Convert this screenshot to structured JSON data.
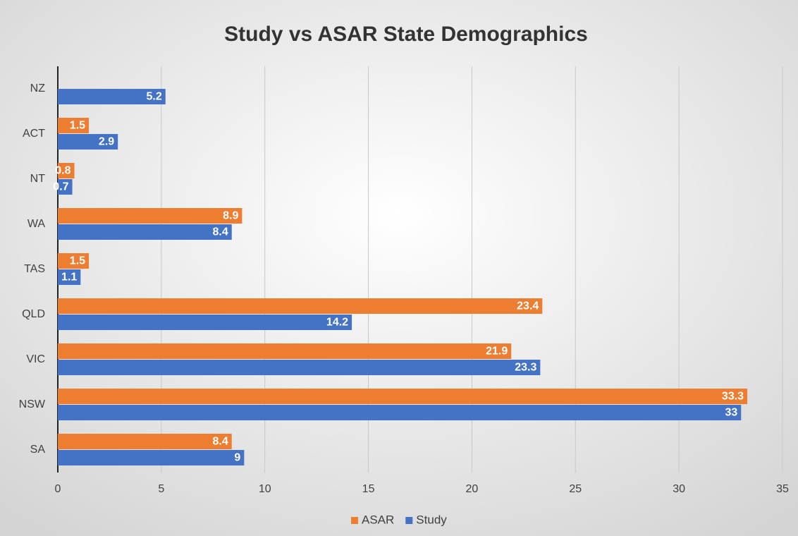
{
  "chart_data": {
    "type": "hbar",
    "title": "Study vs ASAR State Demographics",
    "categories": [
      "SA",
      "NSW",
      "VIC",
      "QLD",
      "TAS",
      "WA",
      "NT",
      "ACT",
      "NZ"
    ],
    "series": [
      {
        "name": "ASAR",
        "color": "#ed7d31",
        "values": [
          8.4,
          33.3,
          21.9,
          23.4,
          1.5,
          8.9,
          0.8,
          1.5,
          null
        ]
      },
      {
        "name": "Study",
        "color": "#4472c4",
        "values": [
          9,
          33,
          23.3,
          14.2,
          1.1,
          8.4,
          0.7,
          2.9,
          5.2
        ]
      }
    ],
    "xlim": [
      0,
      35
    ],
    "xticks": [
      0,
      5,
      10,
      15,
      20,
      25,
      30,
      35
    ],
    "grid": true,
    "legend": "bottom"
  }
}
